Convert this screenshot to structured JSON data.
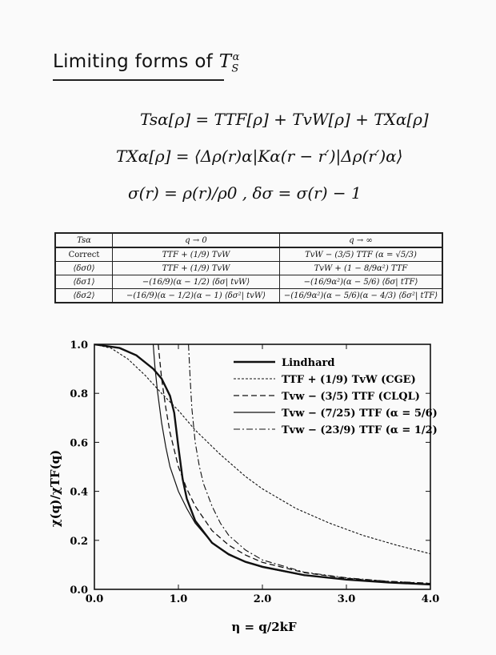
{
  "header": {
    "title_text": "Limiting forms of ",
    "title_math": "T",
    "title_sub": "S",
    "title_sup": "α"
  },
  "equations": [
    "Tsα[ρ]  =  TTF[ρ] + TvW[ρ] + TXα[ρ]",
    "TXα[ρ]  =  ⟨Δρ(r)α|Kα(r − r′)|Δρ(r′)α⟩",
    "σ(r) = ρ(r)/ρ0 ,   δσ = σ(r) − 1"
  ],
  "table": {
    "headers": [
      "Tsα",
      "q → 0",
      "q → ∞"
    ],
    "rows": [
      [
        "Correct",
        "TTF + (1/9) TvW",
        "TvW − (3/5) TTF   (α = √5/3)"
      ],
      [
        "⟨δσ0⟩",
        "TTF + (1/9) TvW",
        "TvW + (1 − 8/9α²) TTF"
      ],
      [
        "⟨δσ1⟩",
        "−(16/9)(α − 1/2) ⟨δσ| tvW⟩",
        "−(16/9α²)(α − 5/6) ⟨δσ| tTF⟩"
      ],
      [
        "⟨δσ2⟩",
        "−(16/9)(α − 1/2)(α − 1) ⟨δσ²| tvW⟩",
        "−(16/9α²)(α − 5/6)(α − 4/3) ⟨δσ²| tTF⟩"
      ]
    ]
  },
  "chart_data": {
    "type": "line",
    "xlabel": "η = q/2kF",
    "ylabel": "χ(q)/χTF(q)",
    "xlim": [
      0.0,
      4.0
    ],
    "ylim": [
      0.0,
      1.0
    ],
    "xticks": [
      "0.0",
      "1.0",
      "2.0",
      "3.0",
      "4.0"
    ],
    "yticks": [
      "0.0",
      "0.2",
      "0.4",
      "0.6",
      "0.8",
      "1.0"
    ],
    "legend_position": "top-right",
    "series": [
      {
        "name": "Lindhard",
        "style": "solid-bold",
        "x": [
          0.0,
          0.3,
          0.5,
          0.7,
          0.8,
          0.9,
          0.95,
          1.0,
          1.05,
          1.1,
          1.2,
          1.4,
          1.6,
          1.8,
          2.0,
          2.5,
          3.0,
          3.5,
          4.0
        ],
        "y": [
          1.0,
          0.985,
          0.955,
          0.9,
          0.86,
          0.79,
          0.72,
          0.58,
          0.45,
          0.37,
          0.28,
          0.19,
          0.142,
          0.112,
          0.092,
          0.058,
          0.04,
          0.028,
          0.02
        ]
      },
      {
        "name": "TTF + (1/9) TvW (CGE)",
        "style": "dotted",
        "x": [
          0.0,
          0.2,
          0.4,
          0.6,
          0.8,
          1.0,
          1.2,
          1.5,
          1.8,
          2.0,
          2.4,
          2.8,
          3.2,
          3.6,
          4.0
        ],
        "y": [
          1.0,
          0.984,
          0.94,
          0.875,
          0.8,
          0.73,
          0.65,
          0.55,
          0.46,
          0.41,
          0.33,
          0.27,
          0.22,
          0.18,
          0.145
        ]
      },
      {
        "name": "Tvw − (3/5) TTF (CLQL)",
        "style": "dashed",
        "x": [
          0.76,
          0.78,
          0.8,
          0.85,
          0.9,
          1.0,
          1.1,
          1.2,
          1.4,
          1.6,
          1.8,
          2.0,
          2.5,
          3.0,
          3.5,
          4.0
        ],
        "y": [
          1.0,
          0.93,
          0.86,
          0.74,
          0.64,
          0.5,
          0.41,
          0.34,
          0.24,
          0.18,
          0.14,
          0.11,
          0.068,
          0.045,
          0.032,
          0.024
        ]
      },
      {
        "name": "Tvw − (7/25) TTF (α = 5/6)",
        "style": "solid-thin",
        "x": [
          0.7,
          0.72,
          0.75,
          0.8,
          0.85,
          0.9,
          1.0,
          1.1,
          1.2,
          1.4,
          1.6,
          1.8,
          2.0,
          2.5,
          3.0,
          3.5,
          4.0
        ],
        "y": [
          1.0,
          0.91,
          0.81,
          0.68,
          0.58,
          0.5,
          0.4,
          0.33,
          0.27,
          0.19,
          0.145,
          0.112,
          0.09,
          0.057,
          0.04,
          0.028,
          0.02
        ]
      },
      {
        "name": "Tvw − (23/9) TTF (α = 1/2)",
        "style": "dashdot",
        "x": [
          1.12,
          1.14,
          1.16,
          1.2,
          1.25,
          1.3,
          1.4,
          1.5,
          1.6,
          1.8,
          2.0,
          2.5,
          3.0,
          3.5,
          4.0
        ],
        "y": [
          1.0,
          0.86,
          0.74,
          0.6,
          0.5,
          0.43,
          0.34,
          0.27,
          0.22,
          0.16,
          0.12,
          0.07,
          0.047,
          0.033,
          0.025
        ]
      }
    ]
  }
}
